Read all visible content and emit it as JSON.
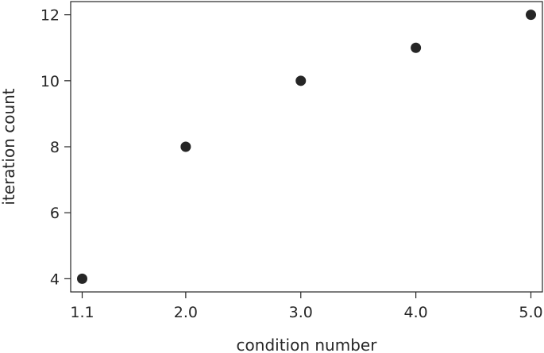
{
  "chart_data": {
    "type": "scatter",
    "title": "",
    "xlabel": "condition number",
    "ylabel": "iteration count",
    "x": [
      1.1,
      2.0,
      3.0,
      4.0,
      5.0
    ],
    "y": [
      4,
      8,
      10,
      11,
      12
    ],
    "x_ticks": [
      "1.1",
      "2.0",
      "3.0",
      "4.0",
      "5.0"
    ],
    "y_ticks": [
      4,
      6,
      8,
      10,
      12
    ],
    "xlim": [
      1.0,
      5.1
    ],
    "ylim": [
      3.6,
      12.4
    ],
    "grid": false,
    "marker_color": "#262626",
    "axis_color": "#262626"
  }
}
